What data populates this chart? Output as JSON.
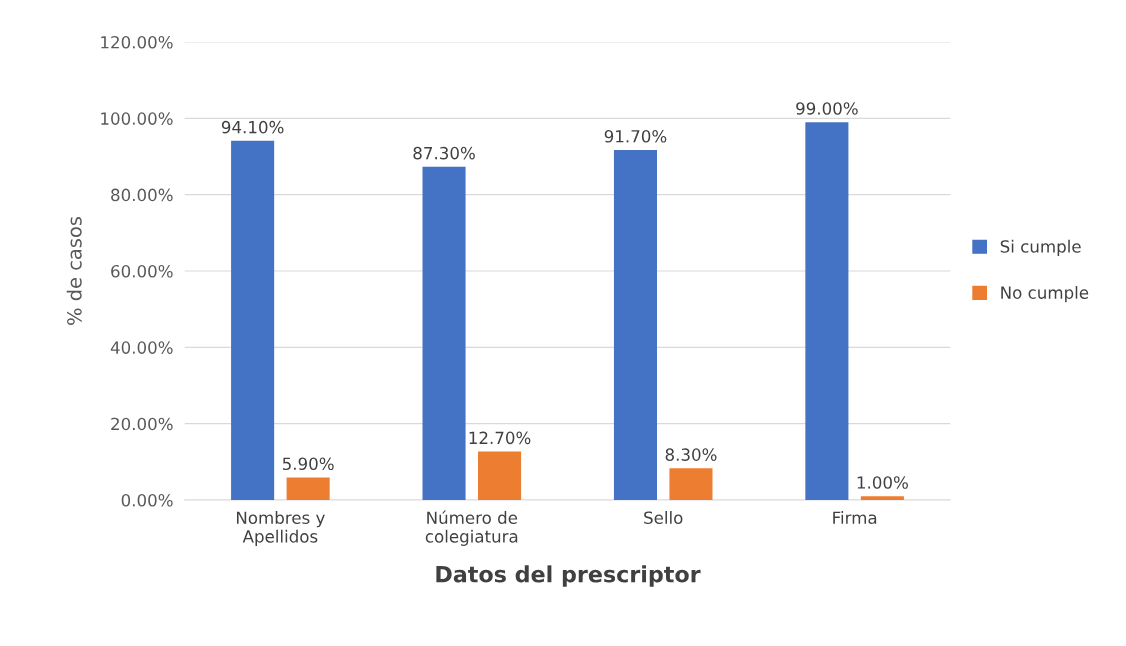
{
  "chart_data": {
    "type": "bar",
    "xlabel": "Datos del prescriptor",
    "ylabel": "% de casos",
    "categories": [
      "Nombres y\nApellidos",
      "Número de\ncolegiatura",
      "Sello",
      "Firma"
    ],
    "series": [
      {
        "name": "Si cumple",
        "color": "#4472c4",
        "values": [
          94.1,
          87.3,
          91.7,
          99.0
        ],
        "value_labels": [
          "94.10%",
          "87.30%",
          "91.70%",
          "99.00%"
        ]
      },
      {
        "name": "No cumple",
        "color": "#ed7d31",
        "values": [
          5.9,
          12.7,
          8.3,
          1.0
        ],
        "value_labels": [
          "5.90%",
          "12.70%",
          "8.30%",
          "1.00%"
        ]
      }
    ],
    "ylim": [
      0,
      120
    ],
    "yticks": [
      {
        "value": 0,
        "label": "0.00%"
      },
      {
        "value": 20,
        "label": "20.00%"
      },
      {
        "value": 40,
        "label": "40.00%"
      },
      {
        "value": 60,
        "label": "60.00%"
      },
      {
        "value": 80,
        "label": "80.00%"
      },
      {
        "value": 100,
        "label": "100.00%"
      },
      {
        "value": 120,
        "label": "120.00%"
      }
    ],
    "grid": "y",
    "legend": "right"
  }
}
